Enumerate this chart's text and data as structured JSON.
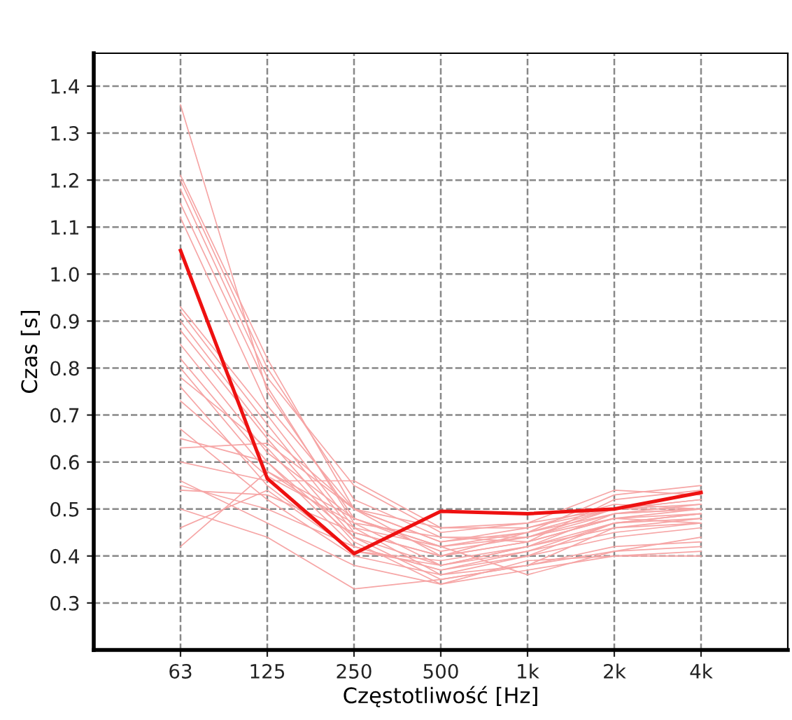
{
  "chart_data": {
    "type": "line",
    "xlabel": "Częstotliwość [Hz]",
    "ylabel": "Czas [s]",
    "categories": [
      "63",
      "125",
      "250",
      "500",
      "1k",
      "2k",
      "4k"
    ],
    "ylim": [
      0.2,
      1.47
    ],
    "yticks": [
      0.3,
      0.4,
      0.5,
      0.6,
      0.7,
      0.8,
      0.9,
      {
        "value": 1.0,
        "label": "1.0"
      },
      1.1,
      1.2,
      1.3,
      1.4
    ],
    "grid": true,
    "marker": "none",
    "series": [
      {
        "color": "#f6a5a5",
        "values": [
          1.36,
          0.75,
          0.48,
          0.42,
          0.44,
          0.5,
          0.52
        ]
      },
      {
        "color": "#f6a5a5",
        "values": [
          1.21,
          0.82,
          0.5,
          0.4,
          0.45,
          0.53,
          0.55
        ]
      },
      {
        "color": "#f6a5a5",
        "values": [
          1.2,
          0.8,
          0.52,
          0.44,
          0.43,
          0.52,
          0.54
        ]
      },
      {
        "color": "#f6a5a5",
        "values": [
          1.18,
          0.78,
          0.55,
          0.45,
          0.47,
          0.54,
          0.53
        ]
      },
      {
        "color": "#f6a5a5",
        "values": [
          1.15,
          0.76,
          0.47,
          0.38,
          0.42,
          0.49,
          0.5
        ]
      },
      {
        "color": "#f6a5a5",
        "values": [
          1.12,
          0.72,
          0.5,
          0.43,
          0.46,
          0.51,
          0.5
        ]
      },
      {
        "color": "#f6a5a5",
        "values": [
          0.93,
          0.7,
          0.46,
          0.36,
          0.4,
          0.47,
          0.49
        ]
      },
      {
        "color": "#f6a5a5",
        "values": [
          0.92,
          0.68,
          0.45,
          0.4,
          0.43,
          0.48,
          0.47
        ]
      },
      {
        "color": "#f6a5a5",
        "values": [
          0.9,
          0.66,
          0.5,
          0.46,
          0.47,
          0.5,
          0.51
        ]
      },
      {
        "color": "#f6a5a5",
        "values": [
          0.88,
          0.65,
          0.44,
          0.35,
          0.38,
          0.46,
          0.48
        ]
      },
      {
        "color": "#f6a5a5",
        "values": [
          0.85,
          0.62,
          0.48,
          0.41,
          0.44,
          0.49,
          0.5
        ]
      },
      {
        "color": "#f6a5a5",
        "values": [
          0.82,
          0.6,
          0.42,
          0.37,
          0.41,
          0.47,
          0.49
        ]
      },
      {
        "color": "#f6a5a5",
        "values": [
          0.8,
          0.58,
          0.46,
          0.42,
          0.45,
          0.5,
          0.52
        ]
      },
      {
        "color": "#f6a5a5",
        "values": [
          0.78,
          0.63,
          0.43,
          0.34,
          0.37,
          0.4,
          0.4
        ]
      },
      {
        "color": "#f6a5a5",
        "values": [
          0.76,
          0.55,
          0.41,
          0.39,
          0.42,
          0.46,
          0.47
        ]
      },
      {
        "color": "#f6a5a5",
        "values": [
          0.73,
          0.57,
          0.47,
          0.44,
          0.44,
          0.48,
          0.49
        ]
      },
      {
        "color": "#f6a5a5",
        "values": [
          0.67,
          0.52,
          0.4,
          0.36,
          0.38,
          0.41,
          0.42
        ]
      },
      {
        "color": "#f6a5a5",
        "values": [
          0.65,
          0.6,
          0.44,
          0.38,
          0.42,
          0.47,
          0.48
        ]
      },
      {
        "color": "#f6a5a5",
        "values": [
          0.63,
          0.64,
          0.5,
          0.43,
          0.45,
          0.49,
          0.51
        ]
      },
      {
        "color": "#f6a5a5",
        "values": [
          0.6,
          0.56,
          0.56,
          0.46,
          0.46,
          0.5,
          0.5
        ]
      },
      {
        "color": "#f6a5a5",
        "values": [
          0.56,
          0.47,
          0.38,
          0.34,
          0.39,
          0.4,
          0.41
        ]
      },
      {
        "color": "#f6a5a5",
        "values": [
          0.55,
          0.5,
          0.42,
          0.37,
          0.4,
          0.44,
          0.46
        ]
      },
      {
        "color": "#f6a5a5",
        "values": [
          0.54,
          0.53,
          0.45,
          0.4,
          0.43,
          0.48,
          0.5
        ]
      },
      {
        "color": "#f6a5a5",
        "values": [
          0.5,
          0.44,
          0.33,
          0.35,
          0.38,
          0.42,
          0.43
        ]
      },
      {
        "color": "#f6a5a5",
        "values": [
          0.46,
          0.54,
          0.41,
          0.38,
          0.41,
          0.45,
          0.47
        ]
      },
      {
        "color": "#f6a5a5",
        "values": [
          0.42,
          0.58,
          0.48,
          0.42,
          0.36,
          0.41,
          0.44
        ]
      },
      {
        "color": "#ee1111",
        "values": [
          1.05,
          0.565,
          0.405,
          0.495,
          0.49,
          0.5,
          0.535
        ]
      }
    ]
  }
}
